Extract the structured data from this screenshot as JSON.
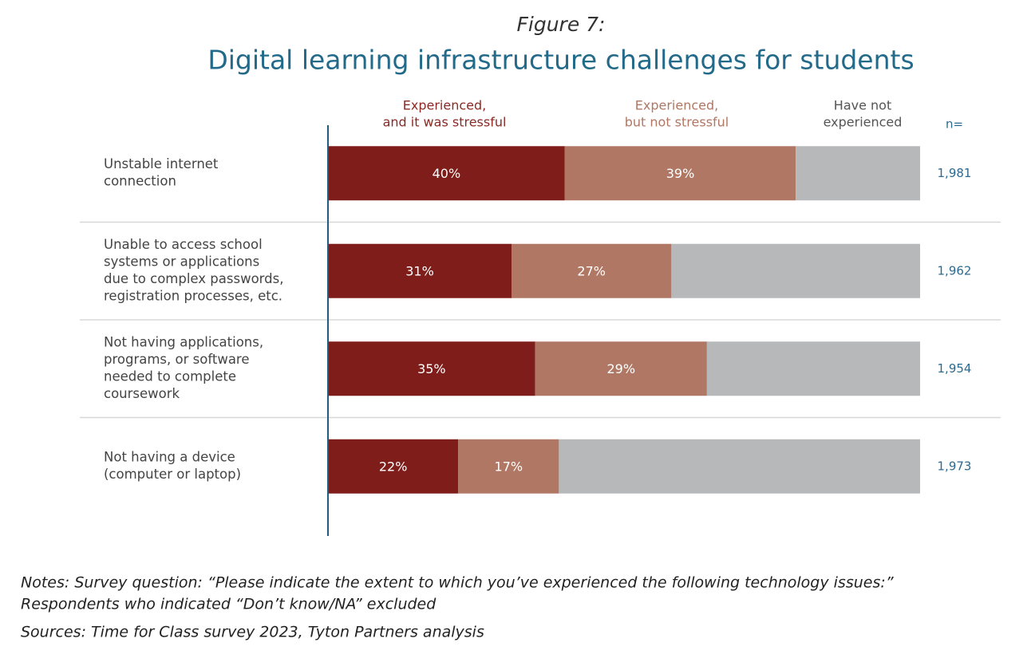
{
  "chart_data": {
    "type": "stacked-barh",
    "figure_label": "Figure 7:",
    "title": "Digital learning infrastructure challenges for students",
    "categories": [
      [
        "Unstable internet",
        "connection"
      ],
      [
        "Unable to access school",
        "systems or applications",
        "due to complex passwords,",
        "registration processes, etc."
      ],
      [
        "Not having applications,",
        "programs, or software",
        "needed to complete",
        "coursework"
      ],
      [
        "Not having a device",
        "(computer or laptop)"
      ]
    ],
    "series": [
      {
        "name": [
          "Experienced,",
          "and it was stressful"
        ],
        "color": "#7f1d1a",
        "label_color": "#8b2a24",
        "values": [
          40,
          31,
          35,
          22
        ],
        "value_labels": [
          "40%",
          "31%",
          "35%",
          "22%"
        ]
      },
      {
        "name": [
          "Experienced,",
          "but not stressful"
        ],
        "color": "#b07864",
        "label_color": "#b07864",
        "values": [
          39,
          27,
          29,
          17
        ],
        "value_labels": [
          "39%",
          "27%",
          "29%",
          "17%"
        ]
      },
      {
        "name": [
          "Have not",
          "experienced"
        ],
        "color": "#b7b8ba",
        "label_color": "#555555",
        "values": [
          21,
          42,
          36,
          61
        ]
      }
    ],
    "xlim": [
      0,
      100
    ],
    "n": {
      "label": "n=",
      "values": [
        1981,
        1962,
        1954,
        1973
      ],
      "value_labels": [
        "1,981",
        "1,962",
        "1,954",
        "1,973"
      ]
    },
    "notes": [
      "Notes: Survey question: “Please indicate the extent to which you’ve experienced the following technology issues:”",
      "Respondents who indicated “Don’t know/NA” excluded"
    ],
    "sources": "Sources: Time for Class survey 2023, Tyton Partners analysis"
  }
}
